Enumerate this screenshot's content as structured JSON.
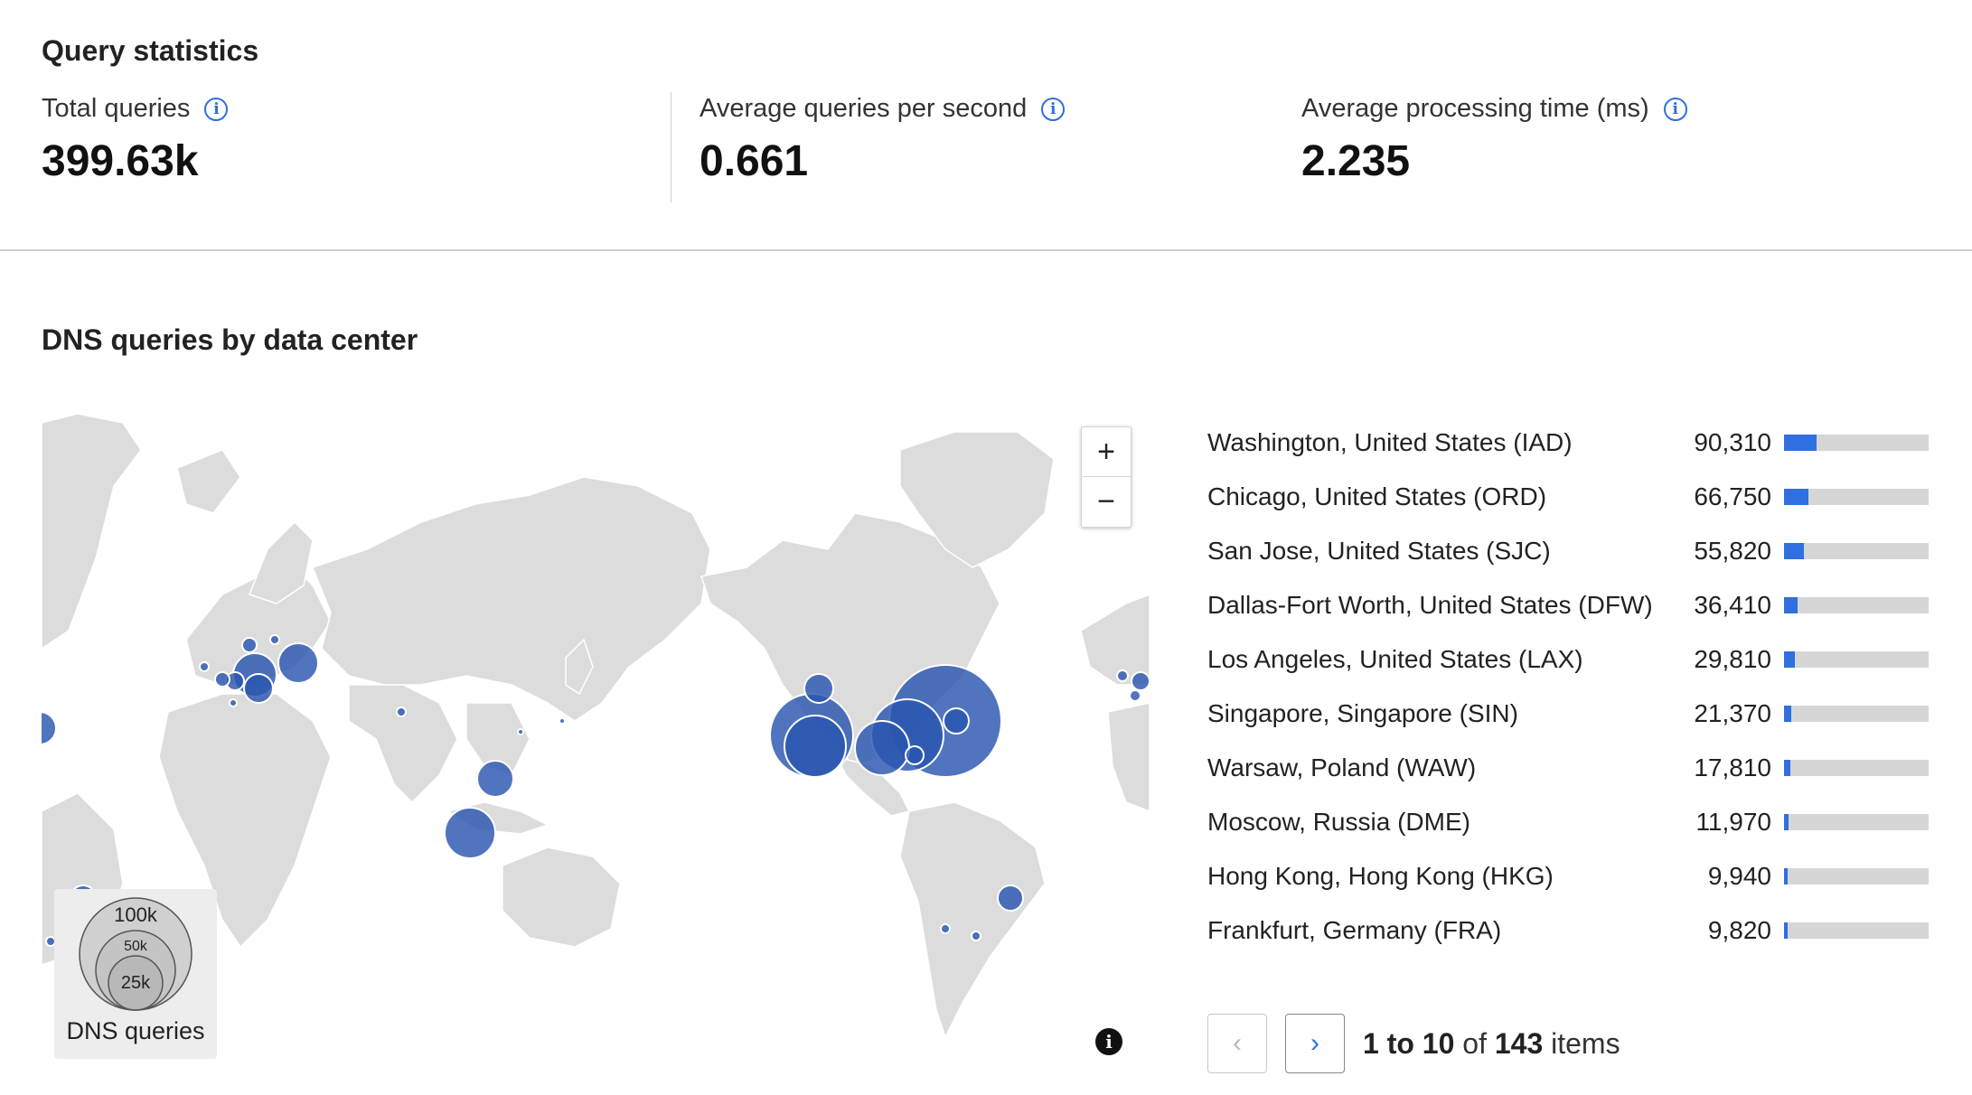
{
  "query_statistics": {
    "title": "Query statistics",
    "stats": [
      {
        "label": "Total queries",
        "value": "399.63k"
      },
      {
        "label": "Average queries per second",
        "value": "0.661"
      },
      {
        "label": "Average processing time (ms)",
        "value": "2.235"
      }
    ]
  },
  "dns_map": {
    "title": "DNS queries by data center",
    "zoom_in": "+",
    "zoom_out": "−",
    "legend": {
      "label": "DNS queries",
      "sizes": [
        "100k",
        "50k",
        "25k"
      ]
    },
    "info_glyph": "i"
  },
  "data_centers": [
    {
      "name": "Washington, United States (IAD)",
      "count": "90,310",
      "share": 0.226
    },
    {
      "name": "Chicago, United States (ORD)",
      "count": "66,750",
      "share": 0.167
    },
    {
      "name": "San Jose, United States (SJC)",
      "count": "55,820",
      "share": 0.14
    },
    {
      "name": "Dallas-Fort Worth, United States (DFW)",
      "count": "36,410",
      "share": 0.091
    },
    {
      "name": "Los Angeles, United States (LAX)",
      "count": "29,810",
      "share": 0.075
    },
    {
      "name": "Singapore, Singapore (SIN)",
      "count": "21,370",
      "share": 0.053
    },
    {
      "name": "Warsaw, Poland (WAW)",
      "count": "17,810",
      "share": 0.045
    },
    {
      "name": "Moscow, Russia (DME)",
      "count": "11,970",
      "share": 0.03
    },
    {
      "name": "Hong Kong, Hong Kong (HKG)",
      "count": "9,940",
      "share": 0.025
    },
    {
      "name": "Frankfurt, Germany (FRA)",
      "count": "9,820",
      "share": 0.025
    }
  ],
  "pagination": {
    "range": "1 to 10",
    "of": "of",
    "total": "143",
    "unit": "items",
    "prev_icon": "chevron-left",
    "next_icon": "chevron-right"
  },
  "colors": {
    "accent": "#2f6fe0",
    "bubble": "#2a55b0",
    "land": "#dcdcdc",
    "bar_track": "#d6d6d6"
  }
}
